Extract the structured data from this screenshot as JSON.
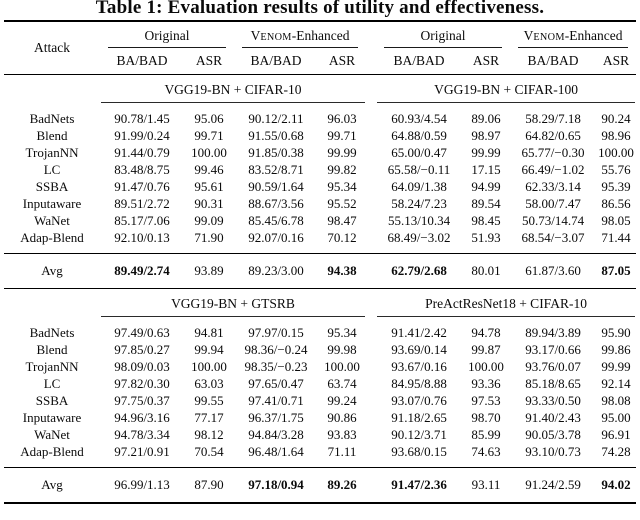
{
  "title": "Table 1: Evaluation results of utility and effectiveness.",
  "header": {
    "attack_label": "Attack",
    "original_label": "Original",
    "venom": {
      "cap": "V",
      "small": "ENOM",
      "suffix": "-Enhanced"
    },
    "sub_ba": "BA/BAD",
    "sub_asr": "ASR"
  },
  "sections": [
    {
      "left_title": "VGG19-BN + CIFAR-10",
      "right_title": "VGG19-BN + CIFAR-100",
      "rows": [
        {
          "attack": "BadNets",
          "values": [
            "90.78/1.45",
            "95.06",
            "90.12/2.11",
            "96.03",
            "60.93/4.54",
            "89.06",
            "58.29/7.18",
            "90.24"
          ]
        },
        {
          "attack": "Blend",
          "values": [
            "91.99/0.24",
            "99.71",
            "91.55/0.68",
            "99.71",
            "64.88/0.59",
            "98.97",
            "64.82/0.65",
            "98.96"
          ]
        },
        {
          "attack": "TrojanNN",
          "values": [
            "91.44/0.79",
            "100.00",
            "91.85/0.38",
            "99.99",
            "65.00/0.47",
            "99.99",
            "65.77/−0.30",
            "100.00"
          ]
        },
        {
          "attack": "LC",
          "values": [
            "83.48/8.75",
            "99.46",
            "83.52/8.71",
            "99.82",
            "65.58/−0.11",
            "17.15",
            "66.49/−1.02",
            "55.76"
          ]
        },
        {
          "attack": "SSBA",
          "values": [
            "91.47/0.76",
            "95.61",
            "90.59/1.64",
            "95.34",
            "64.09/1.38",
            "94.99",
            "62.33/3.14",
            "95.39"
          ]
        },
        {
          "attack": "Inputaware",
          "values": [
            "89.51/2.72",
            "90.31",
            "88.67/3.56",
            "95.52",
            "58.24/7.23",
            "89.54",
            "58.00/7.47",
            "86.56"
          ]
        },
        {
          "attack": "WaNet",
          "values": [
            "85.17/7.06",
            "99.09",
            "85.45/6.78",
            "98.47",
            "55.13/10.34",
            "98.45",
            "50.73/14.74",
            "98.05"
          ]
        },
        {
          "attack": "Adap-Blend",
          "values": [
            "92.10/0.13",
            "71.90",
            "92.07/0.16",
            "70.12",
            "68.49/−3.02",
            "51.93",
            "68.54/−3.07",
            "71.44"
          ]
        }
      ],
      "avg": {
        "attack": "Avg",
        "values": [
          "89.49/2.74",
          "93.89",
          "89.23/3.00",
          "94.38",
          "62.79/2.68",
          "80.01",
          "61.87/3.60",
          "87.05"
        ],
        "bold": [
          true,
          false,
          false,
          true,
          true,
          false,
          false,
          true
        ]
      }
    },
    {
      "left_title": "VGG19-BN + GTSRB",
      "right_title": "PreActResNet18 + CIFAR-10",
      "rows": [
        {
          "attack": "BadNets",
          "values": [
            "97.49/0.63",
            "94.81",
            "97.97/0.15",
            "95.34",
            "91.41/2.42",
            "94.78",
            "89.94/3.89",
            "95.90"
          ]
        },
        {
          "attack": "Blend",
          "values": [
            "97.85/0.27",
            "99.94",
            "98.36/−0.24",
            "99.98",
            "93.69/0.14",
            "99.87",
            "93.17/0.66",
            "99.86"
          ]
        },
        {
          "attack": "TrojanNN",
          "values": [
            "98.09/0.03",
            "100.00",
            "98.35/−0.23",
            "100.00",
            "93.67/0.16",
            "100.00",
            "93.76/0.07",
            "99.99"
          ]
        },
        {
          "attack": "LC",
          "values": [
            "97.82/0.30",
            "63.03",
            "97.65/0.47",
            "63.74",
            "84.95/8.88",
            "93.36",
            "85.18/8.65",
            "92.14"
          ]
        },
        {
          "attack": "SSBA",
          "values": [
            "97.75/0.37",
            "99.55",
            "97.41/0.71",
            "99.24",
            "93.07/0.76",
            "97.53",
            "93.33/0.50",
            "98.08"
          ]
        },
        {
          "attack": "Inputaware",
          "values": [
            "94.96/3.16",
            "77.17",
            "96.37/1.75",
            "90.86",
            "91.18/2.65",
            "98.70",
            "91.40/2.43",
            "95.00"
          ]
        },
        {
          "attack": "WaNet",
          "values": [
            "94.78/3.34",
            "98.12",
            "94.84/3.28",
            "93.83",
            "90.12/3.71",
            "85.99",
            "90.05/3.78",
            "96.91"
          ]
        },
        {
          "attack": "Adap-Blend",
          "values": [
            "97.21/0.91",
            "70.54",
            "96.48/1.64",
            "71.11",
            "93.68/0.15",
            "74.63",
            "93.10/0.73",
            "74.28"
          ]
        }
      ],
      "avg": {
        "attack": "Avg",
        "values": [
          "96.99/1.13",
          "87.90",
          "97.18/0.94",
          "89.26",
          "91.47/2.36",
          "93.11",
          "91.24/2.59",
          "94.02"
        ],
        "bold": [
          false,
          false,
          true,
          true,
          true,
          false,
          false,
          true
        ]
      }
    }
  ]
}
